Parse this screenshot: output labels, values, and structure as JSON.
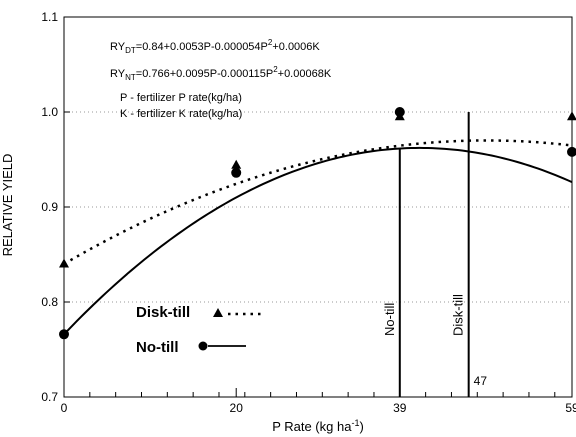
{
  "chart_data": {
    "type": "line",
    "xlabel": "P Rate (kg ha",
    "xlabel_sup": "-1",
    "xlabel_close": ")",
    "ylabel": "RELATIVE YIELD",
    "xlim": [
      0,
      59
    ],
    "ylim": [
      0.7,
      1.1
    ],
    "x_ticks": [
      0,
      20,
      39,
      59
    ],
    "x_minor_step": 3,
    "y_ticks": [
      0.7,
      0.8,
      0.9,
      1.0,
      1.1
    ],
    "y_tick_labels": [
      "0.7",
      "0.8",
      "0.9",
      "1.0",
      "1.1"
    ],
    "grid": "horizontal-dotted",
    "equations": [
      {
        "lhs": "RY",
        "sub": "DT",
        "rhs": "=0.84+0.0053P-0.000054P",
        "sup": "2",
        "tail": "+0.0006K"
      },
      {
        "lhs": "RY",
        "sub": "NT",
        "rhs": "=0.766+0.0095P-0.000115P",
        "sup": "2",
        "tail": "+0.00068K"
      }
    ],
    "definitions": [
      "P - fertilizer P rate(kg/ha)",
      "K - fertilizer K rate(kg/ha)"
    ],
    "series": [
      {
        "name": "Disk-till",
        "style": "dotted",
        "marker": "triangle",
        "color": "#000000",
        "coef": [
          0.84,
          0.0053,
          -5.4e-05
        ],
        "points": [
          [
            0,
            0.84
          ],
          [
            20,
            0.944
          ],
          [
            39,
            0.995
          ],
          [
            59,
            0.995
          ]
        ]
      },
      {
        "name": "No-till",
        "style": "solid",
        "marker": "circle",
        "color": "#000000",
        "coef": [
          0.766,
          0.0095,
          -0.000115
        ],
        "points": [
          [
            0,
            0.766
          ],
          [
            20,
            0.936
          ],
          [
            39,
            1.0
          ],
          [
            59,
            0.958
          ]
        ]
      }
    ],
    "vertical_lines": [
      {
        "x": 39,
        "label": "No-till"
      },
      {
        "x": 47,
        "label": "Disk-till",
        "value_label": "47"
      }
    ]
  }
}
